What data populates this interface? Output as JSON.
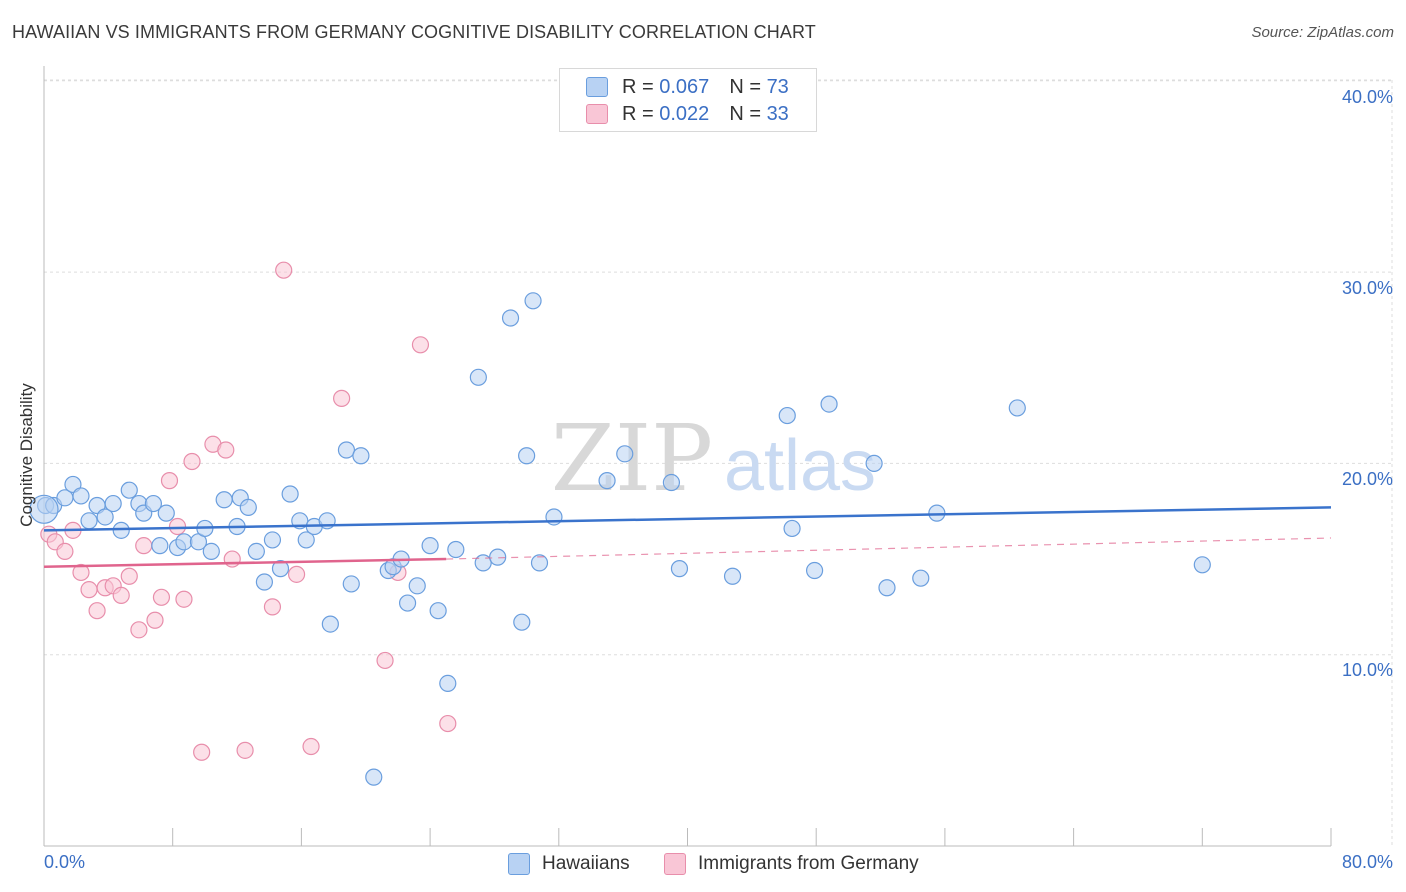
{
  "title": "HAWAIIAN VS IMMIGRANTS FROM GERMANY COGNITIVE DISABILITY CORRELATION CHART",
  "source": "Source: ZipAtlas.com",
  "watermark": {
    "zip": "ZIP",
    "atlas": "atlas"
  },
  "legend": {
    "rows": [
      {
        "r_label": "R =",
        "r_value": "0.067",
        "n_label": "N =",
        "n_value": "73"
      },
      {
        "r_label": "R =",
        "r_value": "0.022",
        "n_label": "N =",
        "n_value": "33"
      }
    ]
  },
  "colors": {
    "hawaiians_fill": "#b8d2f3",
    "hawaiians_stroke": "#6a9ede",
    "hawaiians_line": "#3a73cc",
    "germany_fill": "#f9c6d6",
    "germany_stroke": "#e88eab",
    "germany_line": "#e0648d",
    "axis_text": "#3b6fc4",
    "grid": "#dddddd"
  },
  "chart_data": {
    "type": "scatter",
    "title": "HAWAIIAN VS IMMIGRANTS FROM GERMANY COGNITIVE DISABILITY CORRELATION CHART",
    "xlabel": "",
    "ylabel": "Cognitive Disability",
    "xlim": [
      0,
      80
    ],
    "ylim": [
      0,
      40.5
    ],
    "x_tick_labels": [
      "0.0%",
      "80.0%"
    ],
    "y_ticks": [
      10,
      20,
      30,
      40
    ],
    "y_tick_labels": [
      "10.0%",
      "20.0%",
      "30.0%",
      "40.0%"
    ],
    "grid": true,
    "legend_position": "top-center",
    "series": [
      {
        "name": "Hawaiians",
        "r": 0.067,
        "n": 73,
        "trend": {
          "x": [
            0,
            80
          ],
          "y": [
            16.5,
            17.7
          ]
        },
        "points": [
          [
            0.1,
            17.8
          ],
          [
            0.6,
            17.8
          ],
          [
            1.3,
            18.2
          ],
          [
            1.8,
            18.9
          ],
          [
            2.3,
            18.3
          ],
          [
            2.8,
            17.0
          ],
          [
            3.3,
            17.8
          ],
          [
            3.8,
            17.2
          ],
          [
            4.3,
            17.9
          ],
          [
            4.8,
            16.5
          ],
          [
            5.3,
            18.6
          ],
          [
            5.9,
            17.9
          ],
          [
            6.2,
            17.4
          ],
          [
            6.8,
            17.9
          ],
          [
            7.2,
            15.7
          ],
          [
            7.6,
            17.4
          ],
          [
            8.3,
            15.6
          ],
          [
            8.7,
            15.9
          ],
          [
            9.6,
            15.9
          ],
          [
            10.0,
            16.6
          ],
          [
            10.4,
            15.4
          ],
          [
            11.2,
            18.1
          ],
          [
            12.0,
            16.7
          ],
          [
            12.2,
            18.2
          ],
          [
            12.7,
            17.7
          ],
          [
            13.2,
            15.4
          ],
          [
            13.7,
            13.8
          ],
          [
            14.2,
            16.0
          ],
          [
            14.7,
            14.5
          ],
          [
            15.3,
            18.4
          ],
          [
            15.9,
            17.0
          ],
          [
            16.3,
            16.0
          ],
          [
            16.8,
            16.7
          ],
          [
            17.6,
            17.0
          ],
          [
            17.8,
            11.6
          ],
          [
            18.8,
            20.7
          ],
          [
            19.1,
            13.7
          ],
          [
            19.7,
            20.4
          ],
          [
            20.5,
            3.6
          ],
          [
            21.4,
            14.4
          ],
          [
            21.7,
            14.6
          ],
          [
            22.2,
            15.0
          ],
          [
            22.6,
            12.7
          ],
          [
            23.2,
            13.6
          ],
          [
            24.0,
            15.7
          ],
          [
            24.5,
            12.3
          ],
          [
            25.1,
            8.5
          ],
          [
            25.6,
            15.5
          ],
          [
            27.0,
            24.5
          ],
          [
            27.3,
            14.8
          ],
          [
            28.2,
            15.1
          ],
          [
            29.0,
            27.6
          ],
          [
            29.7,
            11.7
          ],
          [
            30.0,
            20.4
          ],
          [
            30.4,
            28.5
          ],
          [
            30.8,
            14.8
          ],
          [
            31.7,
            17.2
          ],
          [
            35.0,
            19.1
          ],
          [
            36.1,
            20.5
          ],
          [
            39.0,
            19.0
          ],
          [
            39.5,
            14.5
          ],
          [
            42.8,
            14.1
          ],
          [
            46.2,
            22.5
          ],
          [
            46.5,
            16.6
          ],
          [
            47.9,
            14.4
          ],
          [
            48.8,
            23.1
          ],
          [
            51.6,
            20.0
          ],
          [
            52.4,
            13.5
          ],
          [
            54.5,
            14.0
          ],
          [
            55.5,
            17.4
          ],
          [
            60.5,
            22.9
          ],
          [
            72.0,
            14.7
          ],
          [
            0.0,
            17.6
          ]
        ]
      },
      {
        "name": "Immigrants from Germany",
        "r": 0.022,
        "n": 33,
        "trend": {
          "x": [
            0,
            25
          ],
          "y": [
            14.6,
            15.0
          ]
        },
        "trend_dashed": {
          "x": [
            25,
            80
          ],
          "y": [
            15.0,
            16.1
          ]
        },
        "points": [
          [
            0.3,
            16.3
          ],
          [
            0.7,
            15.9
          ],
          [
            1.3,
            15.4
          ],
          [
            1.8,
            16.5
          ],
          [
            2.3,
            14.3
          ],
          [
            2.8,
            13.4
          ],
          [
            3.3,
            12.3
          ],
          [
            3.8,
            13.5
          ],
          [
            4.3,
            13.6
          ],
          [
            4.8,
            13.1
          ],
          [
            5.3,
            14.1
          ],
          [
            5.9,
            11.3
          ],
          [
            6.2,
            15.7
          ],
          [
            6.9,
            11.8
          ],
          [
            7.3,
            13.0
          ],
          [
            7.8,
            19.1
          ],
          [
            8.3,
            16.7
          ],
          [
            8.7,
            12.9
          ],
          [
            9.2,
            20.1
          ],
          [
            9.8,
            4.9
          ],
          [
            10.5,
            21.0
          ],
          [
            11.3,
            20.7
          ],
          [
            11.7,
            15.0
          ],
          [
            12.5,
            5.0
          ],
          [
            14.2,
            12.5
          ],
          [
            14.9,
            30.1
          ],
          [
            15.7,
            14.2
          ],
          [
            16.6,
            5.2
          ],
          [
            18.5,
            23.4
          ],
          [
            21.2,
            9.7
          ],
          [
            22.0,
            14.3
          ],
          [
            23.4,
            26.2
          ],
          [
            25.1,
            6.4
          ]
        ]
      }
    ]
  }
}
